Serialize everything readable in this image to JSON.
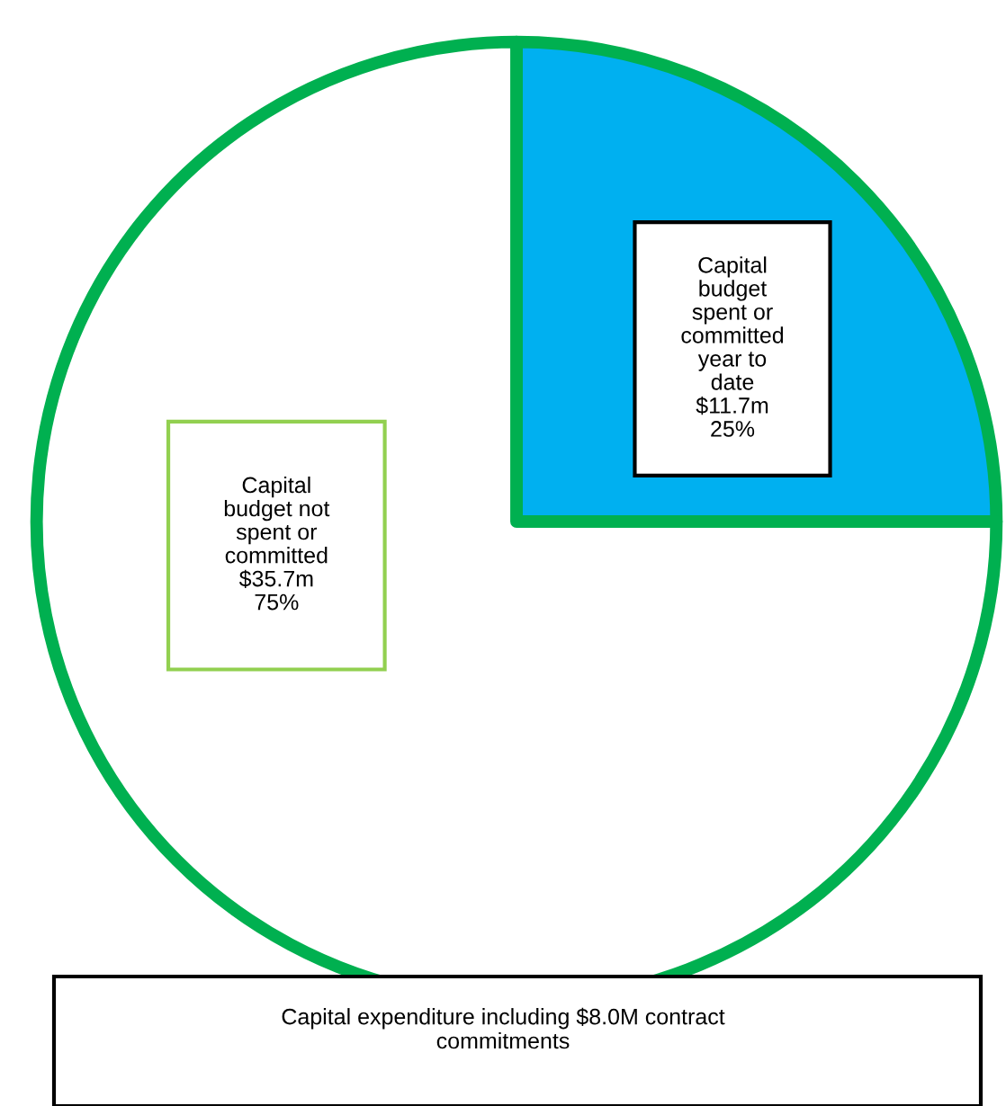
{
  "chart_data": {
    "type": "pie",
    "categories": [
      "Capital budget spent or committed year to date",
      "Capital budget not spent or committed"
    ],
    "values": [
      25,
      75
    ],
    "colors": [
      "#00b0f0",
      "#ffffff"
    ],
    "value_labels": [
      "$11.7m\n25%",
      "$35.7m\n75%"
    ],
    "annotations": [
      "Capital expenditure including $8.0M contract commitments"
    ],
    "legend": false
  }
}
